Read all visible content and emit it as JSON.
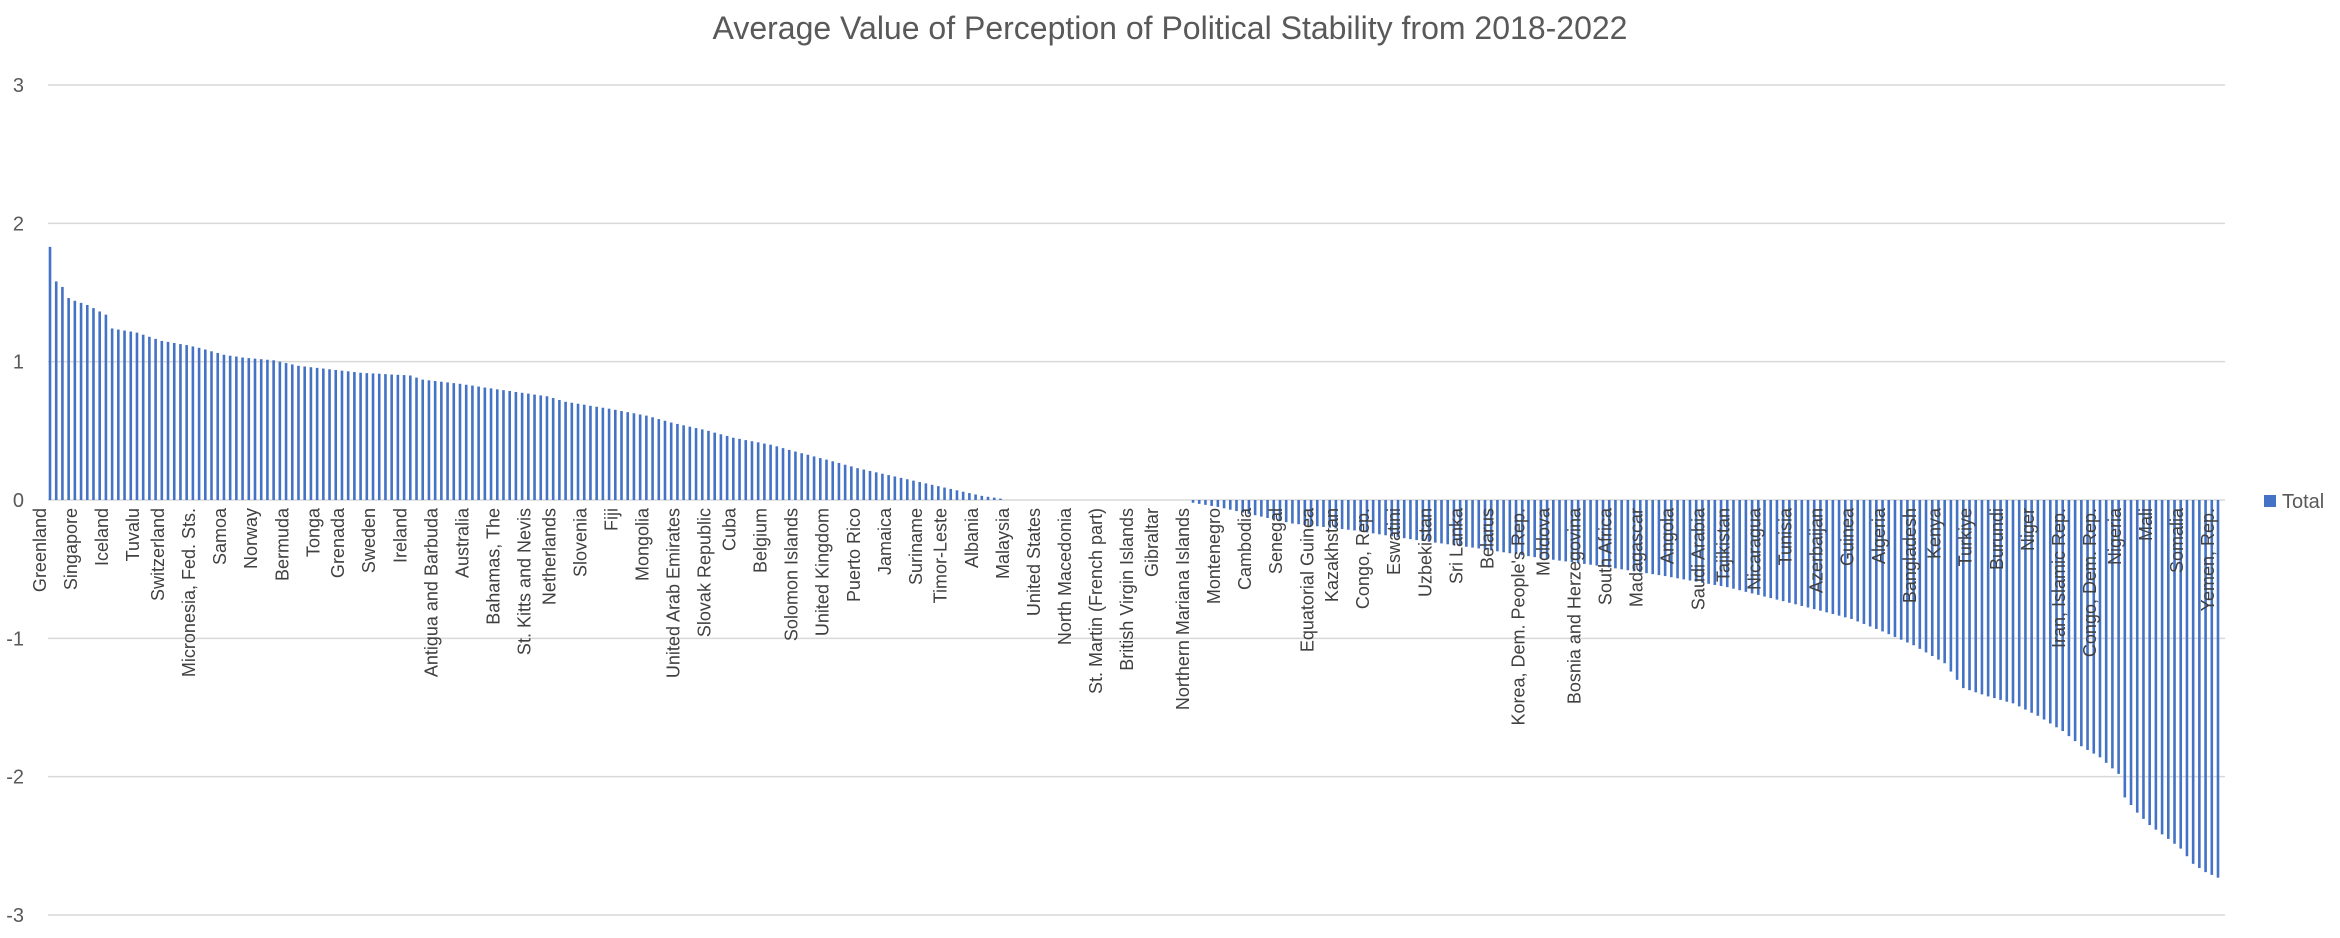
{
  "chart_data": {
    "type": "bar",
    "title": "Average Value of Perception of Political Stability from 2018-2022",
    "xlabel": "",
    "ylabel": "",
    "ylim": [
      -3,
      3
    ],
    "yticks": [
      "3",
      "2",
      "1",
      "0",
      "-1",
      "-2",
      "-3"
    ],
    "grid": true,
    "legend_position": "right",
    "bar_color": "#4472C4",
    "grid_color": "#D9D9D9",
    "series": [
      {
        "name": "Total"
      }
    ],
    "labeled_categories": [
      "Greenland",
      "Singapore",
      "Iceland",
      "Tuvalu",
      "Switzerland",
      "Micronesia, Fed. Sts.",
      "Samoa",
      "Norway",
      "Bermuda",
      "Tonga",
      "Grenada",
      "Sweden",
      "Ireland",
      "Antigua and Barbuda",
      "Australia",
      "Bahamas, The",
      "St. Kitts and Nevis",
      "Netherlands",
      "Slovenia",
      "Fiji",
      "Mongolia",
      "United Arab Emirates",
      "Slovak Republic",
      "Cuba",
      "Belgium",
      "Solomon Islands",
      "United Kingdom",
      "Puerto Rico",
      "Jamaica",
      "Suriname",
      "Timor-Leste",
      "Albania",
      "Malaysia",
      "United States",
      "North Macedonia",
      "St. Martin (French part)",
      "British Virgin Islands",
      "Gibraltar",
      "Northern Mariana Islands",
      "Montenegro",
      "Cambodia",
      "Senegal",
      "Equatorial Guinea",
      "Kazakhstan",
      "Congo, Rep.",
      "Eswatini",
      "Uzbekistan",
      "Sri Lanka",
      "Belarus",
      "Korea, Dem. People's Rep.",
      "Moldova",
      "Bosnia and Herzegovina",
      "South Africa",
      "Madagascar",
      "Angola",
      "Saudi Arabia",
      "Tajikistan",
      "Nicaragua",
      "Tunisia",
      "Azerbaijan",
      "Guinea",
      "Algeria",
      "Bangladesh",
      "Kenya",
      "Turkiye",
      "Burundi",
      "Niger",
      "Iran, Islamic Rep.",
      "Congo, Dem. Rep.",
      "Nigeria",
      "Mali",
      "Somalia",
      "Yemen, Rep."
    ],
    "anchors": [
      [
        0,
        1.83
      ],
      [
        1,
        1.58
      ],
      [
        2,
        1.54
      ],
      [
        3,
        1.46
      ],
      [
        4,
        1.44
      ],
      [
        6,
        1.41
      ],
      [
        9,
        1.34
      ],
      [
        10,
        1.24
      ],
      [
        14,
        1.21
      ],
      [
        16,
        1.18
      ],
      [
        18,
        1.15
      ],
      [
        22,
        1.12
      ],
      [
        24,
        1.1
      ],
      [
        28,
        1.05
      ],
      [
        31,
        1.03
      ],
      [
        36,
        1.01
      ],
      [
        40,
        0.97
      ],
      [
        44,
        0.95
      ],
      [
        50,
        0.92
      ],
      [
        58,
        0.9
      ],
      [
        60,
        0.87
      ],
      [
        66,
        0.84
      ],
      [
        72,
        0.8
      ],
      [
        80,
        0.75
      ],
      [
        83,
        0.71
      ],
      [
        90,
        0.66
      ],
      [
        96,
        0.61
      ],
      [
        100,
        0.56
      ],
      [
        106,
        0.5
      ],
      [
        110,
        0.45
      ],
      [
        116,
        0.4
      ],
      [
        120,
        0.35
      ],
      [
        126,
        0.28
      ],
      [
        130,
        0.23
      ],
      [
        136,
        0.17
      ],
      [
        140,
        0.13
      ],
      [
        146,
        0.07
      ],
      [
        150,
        0.03
      ],
      [
        153,
        0.01
      ],
      [
        154,
        0.0
      ],
      [
        183,
        0.0
      ],
      [
        184,
        -0.02
      ],
      [
        188,
        -0.05
      ],
      [
        193,
        -0.1
      ],
      [
        200,
        -0.17
      ],
      [
        210,
        -0.22
      ],
      [
        220,
        -0.29
      ],
      [
        230,
        -0.35
      ],
      [
        240,
        -0.42
      ],
      [
        250,
        -0.48
      ],
      [
        260,
        -0.55
      ],
      [
        270,
        -0.63
      ],
      [
        278,
        -0.72
      ],
      [
        285,
        -0.8
      ],
      [
        290,
        -0.86
      ],
      [
        295,
        -0.95
      ],
      [
        300,
        -1.05
      ],
      [
        305,
        -1.18
      ],
      [
        308,
        -1.36
      ],
      [
        312,
        -1.42
      ],
      [
        316,
        -1.47
      ],
      [
        320,
        -1.56
      ],
      [
        324,
        -1.67
      ],
      [
        327,
        -1.78
      ],
      [
        330,
        -1.86
      ],
      [
        333,
        -1.98
      ],
      [
        334,
        -2.15
      ],
      [
        336,
        -2.26
      ],
      [
        338,
        -2.35
      ],
      [
        341,
        -2.45
      ],
      [
        343,
        -2.52
      ],
      [
        345,
        -2.63
      ],
      [
        347,
        -2.69
      ],
      [
        349,
        -2.73
      ]
    ]
  }
}
